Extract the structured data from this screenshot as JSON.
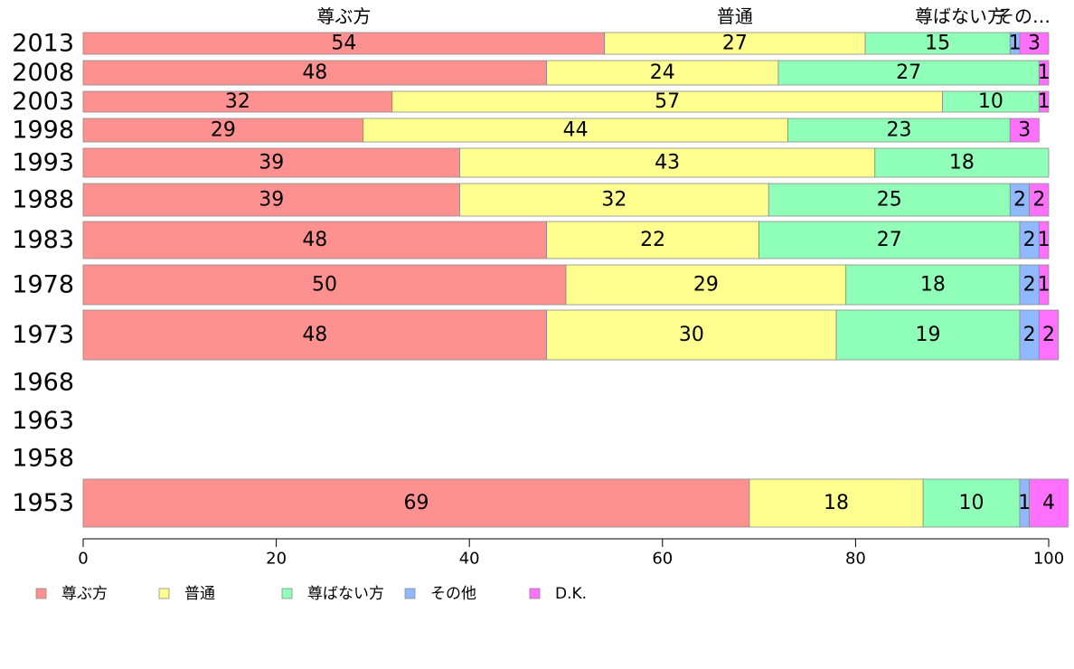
{
  "chart_data": {
    "type": "bar",
    "orientation": "horizontal",
    "stacked": true,
    "categories": [
      "2013",
      "2008",
      "2003",
      "1998",
      "1993",
      "1988",
      "1983",
      "1978",
      "1973",
      "1968",
      "1963",
      "1958",
      "1953"
    ],
    "series": [
      {
        "name": "尊ぶ方",
        "color": "#ff9090",
        "values": [
          54,
          48,
          32,
          29,
          39,
          39,
          48,
          50,
          48,
          null,
          null,
          null,
          69
        ]
      },
      {
        "name": "普通",
        "color": "#ffff90",
        "values": [
          27,
          24,
          57,
          44,
          43,
          32,
          22,
          29,
          30,
          null,
          null,
          null,
          18
        ]
      },
      {
        "name": "尊ばない方",
        "color": "#90ffb8",
        "values": [
          15,
          27,
          10,
          23,
          18,
          25,
          27,
          18,
          19,
          null,
          null,
          null,
          10
        ]
      },
      {
        "name": "その他",
        "color": "#90b8ff",
        "values": [
          1,
          0,
          0,
          0,
          0,
          2,
          2,
          2,
          2,
          null,
          null,
          null,
          1
        ]
      },
      {
        "name": "D.K.",
        "color": "#ff70ff",
        "values": [
          3,
          1,
          1,
          3,
          0,
          2,
          1,
          1,
          2,
          null,
          null,
          null,
          4
        ]
      }
    ],
    "top_labels": [
      "尊ぶ方",
      "普通",
      "尊ばない方",
      "その…"
    ],
    "xlim": [
      0,
      100
    ],
    "xticks": [
      "0",
      "20",
      "40",
      "60",
      "80",
      "100"
    ],
    "legend_placement": "bottom",
    "grid": false
  }
}
